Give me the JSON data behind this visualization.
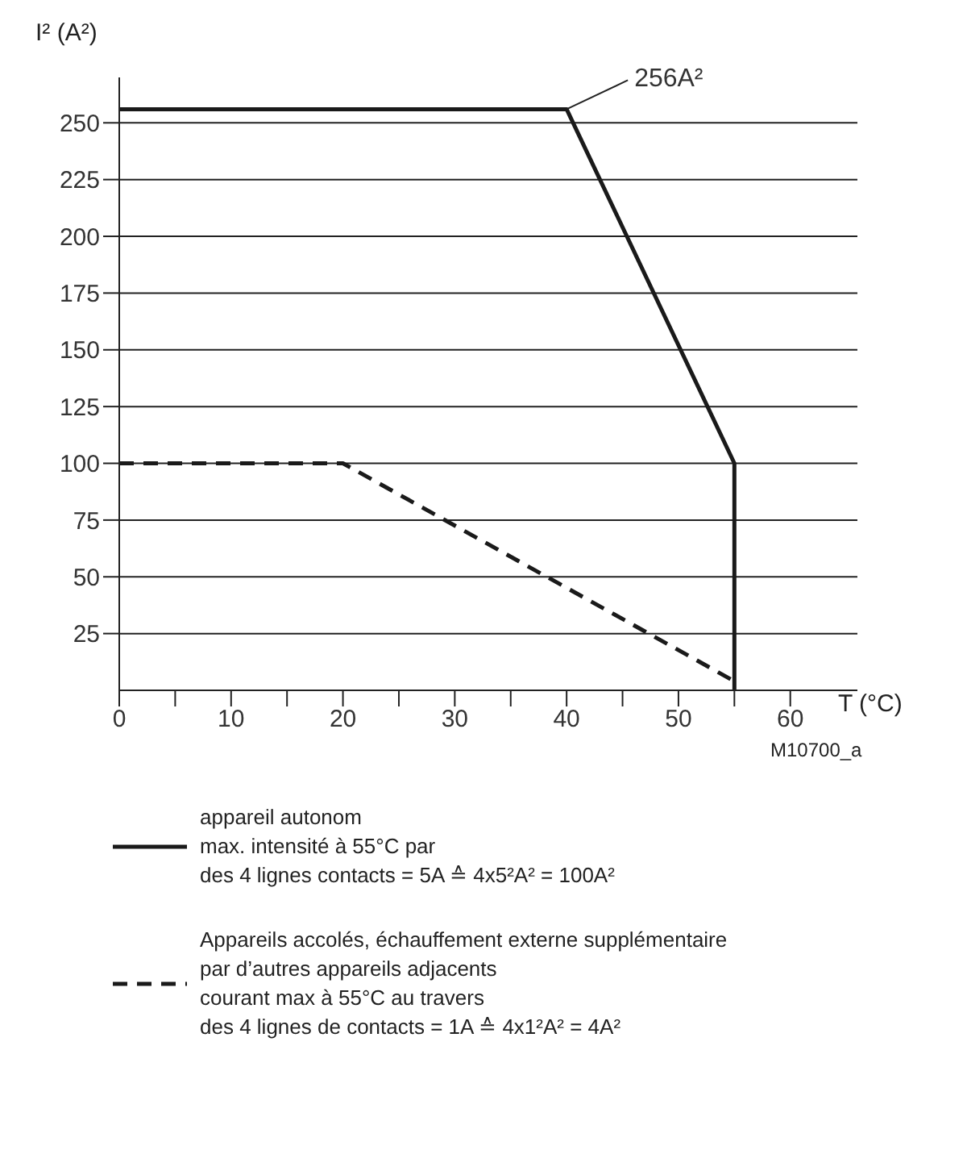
{
  "chart_data": {
    "type": "line",
    "xlabel": "T (°C)",
    "ylabel": "I² (A²)",
    "xlim": [
      0,
      66
    ],
    "ylim": [
      0,
      270
    ],
    "xticks": [
      0,
      {
        "value": 5,
        "label": null
      },
      10,
      {
        "value": 15,
        "label": null
      },
      20,
      {
        "value": 25,
        "label": null
      },
      30,
      {
        "value": 35,
        "label": null
      },
      40,
      {
        "value": 45,
        "label": null
      },
      50,
      {
        "value": 55,
        "label": null
      },
      60
    ],
    "yticks": [
      25,
      50,
      75,
      100,
      125,
      150,
      175,
      200,
      225,
      250
    ],
    "grid": "y",
    "legend": "bottom",
    "marker": "none",
    "series": [
      {
        "name": "appareil autonom\nmax. intensité à 55°C par\ndes 4 lignes contacts = 5A ≙ 4x5²A² = 100A²",
        "color": "#1a1a1a",
        "line_style": "solid",
        "x": [
          0,
          40,
          55,
          55
        ],
        "values": [
          256,
          256,
          100,
          0
        ]
      },
      {
        "name": "Appareils accolés, échauffement externe supplémentaire\npar d’autres appareils adjacents\ncourant max à 55°C au travers\ndes 4 lignes de contacts = 1A ≙ 4x1²A² = 4A²",
        "color": "#1a1a1a",
        "line_style": "dashed",
        "x": [
          0,
          20,
          55
        ],
        "values": [
          100,
          100,
          4
        ]
      }
    ],
    "annotations": [
      {
        "text": "256A²",
        "x": 40,
        "y": 256
      },
      "M10700_a"
    ]
  }
}
